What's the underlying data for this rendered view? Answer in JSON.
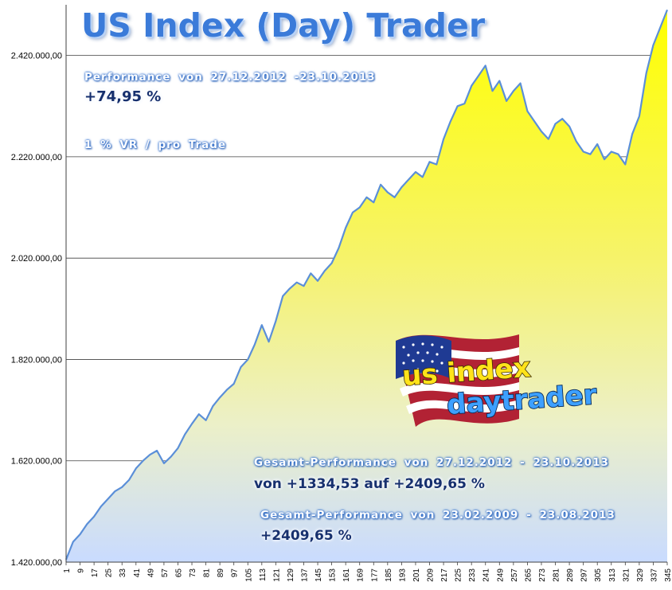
{
  "title": "US Index (Day) Trader",
  "performance": {
    "label": "Performance  von  27.12.2012 -23.10.2013",
    "value": "+74,95  %",
    "risk_note": "1 % VR / pro Trade"
  },
  "gesamt1": {
    "label": "Gesamt-Performance  von  27.12.2012 - 23.10.2013",
    "value": "von +1334,53 auf +2409,65 %"
  },
  "gesamt2": {
    "label": "Gesamt-Performance  von  23.02.2009 - 23.08.2013",
    "value": "+2409,65 %"
  },
  "logo": {
    "line1": "us index",
    "line2": "daytrader"
  },
  "colors": {
    "fill_top": "#ffff00",
    "fill_bottom": "#c9dbff",
    "line": "#5b8fd8",
    "title": "#3b7bd9",
    "gridline": "#404040"
  },
  "chart_data": {
    "type": "area",
    "title": "US Index (Day) Trader",
    "xlabel": "",
    "ylabel": "",
    "grid": true,
    "ylim": [
      1420000,
      2520000
    ],
    "xlim": [
      1,
      345
    ],
    "y_ticks": [
      1420000,
      1620000,
      1820000,
      2020000,
      2220000,
      2420000
    ],
    "y_tick_labels": [
      "1.420.000,00",
      "1.620.000,00",
      "1.820.000,00",
      "2.020.000,00",
      "2.220.000,00",
      "2.420.000,00"
    ],
    "x_tick_labels": [
      "1",
      "9",
      "17",
      "25",
      "33",
      "41",
      "49",
      "57",
      "65",
      "73",
      "81",
      "89",
      "97",
      "105",
      "113",
      "121",
      "129",
      "137",
      "145",
      "153",
      "161",
      "169",
      "177",
      "185",
      "193",
      "201",
      "209",
      "217",
      "225",
      "233",
      "241",
      "249",
      "257",
      "265",
      "273",
      "281",
      "289",
      "297",
      "305",
      "313",
      "321",
      "329",
      "337",
      "345"
    ],
    "series": [
      {
        "x": [
          1,
          5,
          9,
          13,
          17,
          21,
          25,
          29,
          33,
          37,
          41,
          45,
          49,
          53,
          57,
          61,
          65,
          69,
          73,
          77,
          81,
          85,
          89,
          93,
          97,
          101,
          105,
          109,
          113,
          117,
          121,
          125,
          129,
          133,
          137,
          141,
          145,
          149,
          153,
          157,
          161,
          165,
          169,
          173,
          177,
          181,
          185,
          189,
          193,
          197,
          201,
          205,
          209,
          213,
          217,
          221,
          225,
          229,
          233,
          237,
          241,
          245,
          249,
          253,
          257,
          261,
          265,
          269,
          273,
          277,
          281,
          285,
          289,
          293,
          297,
          301,
          305,
          309,
          313,
          317,
          321,
          325,
          329,
          333,
          337,
          341,
          345
        ],
        "values": [
          1425000,
          1460000,
          1475000,
          1495000,
          1510000,
          1530000,
          1545000,
          1560000,
          1568000,
          1582000,
          1605000,
          1620000,
          1632000,
          1640000,
          1615000,
          1628000,
          1645000,
          1672000,
          1693000,
          1712000,
          1700000,
          1728000,
          1745000,
          1760000,
          1772000,
          1805000,
          1820000,
          1850000,
          1888000,
          1855000,
          1896000,
          1945000,
          1960000,
          1972000,
          1965000,
          1990000,
          1975000,
          1995000,
          2010000,
          2040000,
          2080000,
          2110000,
          2120000,
          2140000,
          2130000,
          2165000,
          2150000,
          2140000,
          2160000,
          2175000,
          2190000,
          2180000,
          2210000,
          2205000,
          2255000,
          2290000,
          2320000,
          2325000,
          2360000,
          2380000,
          2400000,
          2350000,
          2370000,
          2330000,
          2350000,
          2365000,
          2310000,
          2290000,
          2270000,
          2255000,
          2285000,
          2295000,
          2280000,
          2250000,
          2230000,
          2225000,
          2245000,
          2215000,
          2230000,
          2225000,
          2205000,
          2265000,
          2300000,
          2385000,
          2440000,
          2475000,
          2510000
        ]
      }
    ]
  }
}
